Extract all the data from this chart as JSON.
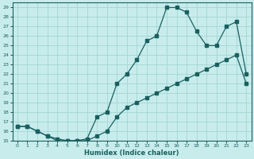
{
  "xlabel": "Humidex (Indice chaleur)",
  "bg_color": "#c8ecec",
  "grid_color": "#a8d8d8",
  "line_color": "#1a6060",
  "xlim": [
    -0.5,
    23.5
  ],
  "ylim": [
    15,
    29.5
  ],
  "curve1_x": [
    0,
    1,
    2,
    3,
    4,
    5,
    6,
    7,
    8,
    9,
    10,
    11,
    12,
    13,
    14,
    15,
    16,
    17,
    18,
    19,
    20,
    21,
    22,
    23
  ],
  "curve1_y": [
    16.5,
    16.5,
    16.0,
    15.5,
    15.0,
    15.0,
    15.0,
    15.2,
    17.5,
    18.0,
    21.0,
    22.0,
    23.5,
    25.5,
    26.0,
    29.0,
    29.0,
    28.5,
    26.5,
    25.0,
    25.0,
    27.0,
    27.5,
    22.0
  ],
  "curve2_x": [
    0,
    1,
    2,
    3,
    4,
    5,
    6,
    7,
    8,
    9,
    10,
    11,
    12,
    13,
    14,
    15,
    16,
    17,
    18,
    19,
    20,
    21,
    22,
    23
  ],
  "curve2_y": [
    16.5,
    16.5,
    16.0,
    15.5,
    15.2,
    15.0,
    15.0,
    15.0,
    15.5,
    16.0,
    17.5,
    18.5,
    19.0,
    19.5,
    20.0,
    20.5,
    21.0,
    21.5,
    22.0,
    22.5,
    23.0,
    23.5,
    24.0,
    21.0
  ],
  "xtick_labels": [
    "0",
    "1",
    "2",
    "3",
    "4",
    "5",
    "6",
    "7",
    "8",
    "9",
    "10",
    "11",
    "12",
    "13",
    "14",
    "15",
    "16",
    "17",
    "18",
    "19",
    "20",
    "21",
    "22",
    "23"
  ],
  "ytick_labels": [
    "15",
    "16",
    "17",
    "18",
    "19",
    "20",
    "21",
    "22",
    "23",
    "24",
    "25",
    "26",
    "27",
    "28",
    "29"
  ]
}
